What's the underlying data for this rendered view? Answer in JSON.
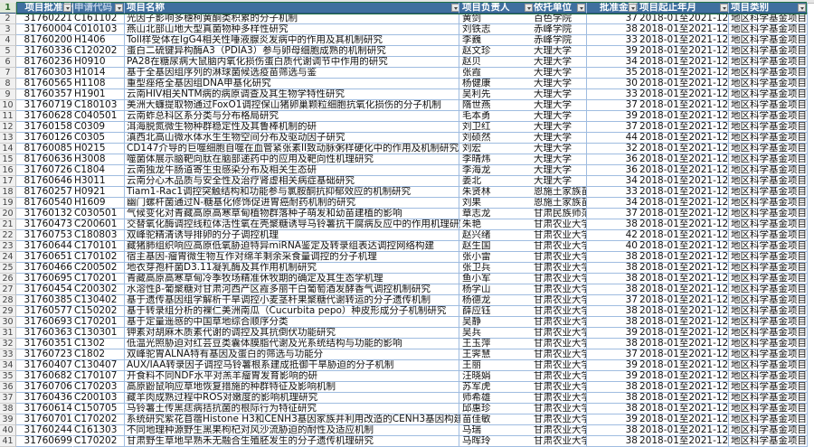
{
  "headers": [
    "项目批准号",
    "申请代码",
    "项目名称",
    "项目负责人",
    "依托单位",
    "批准金额",
    "项目起止年月",
    "项目类别"
  ],
  "header_bg": "#3f6f9f",
  "rows": [
    [
      "31760221",
      "C161102",
      "光因子影响多穗柯黄酮类积累的分子机制",
      "黄剑",
      "百色学院",
      "37",
      "2018-01至2021-12",
      "地区科学基金项目"
    ],
    [
      "31760004",
      "C010103",
      "燕山北部山地大型真菌物种多样性研究",
      "刘铁志",
      "赤峰学院",
      "38",
      "2018-01至2021-12",
      "地区科学基金项目"
    ],
    [
      "81760200",
      "H1406",
      "Toll样受体在IgG4相关性唾液腺炎发病中的作用及其机制研究",
      "李巍",
      "赤峰学院",
      "33",
      "2018-01至2021-12",
      "地区科学基金项目"
    ],
    [
      "31760336",
      "C120202",
      "蛋白二硫键异构酶A3（PDIA3）参与卵母细胞成熟的机制研究",
      "赵文珍",
      "大理大学",
      "39",
      "2018-01至2021-12",
      "地区科学基金项目"
    ],
    [
      "81760236",
      "H0910",
      "PA28在糖尿病大鼠脑内氧化损伤蛋白质代谢调节中作用的研究",
      "赵贝",
      "大理大学",
      "34",
      "2018-01至2021-12",
      "地区科学基金项目"
    ],
    [
      "81760303",
      "H1014",
      "基于全基因组序列的淋球菌候选疫苗筛选与鉴",
      "张霞",
      "大理大学",
      "35",
      "2018-01至2021-12",
      "地区科学基金项目"
    ],
    [
      "81760565",
      "H1108",
      "重型痤疮全基因组DNA甲基化研究",
      "杨健康",
      "大理大学",
      "30",
      "2018-01至2021-12",
      "地区科学基金项目"
    ],
    [
      "81760357",
      "H1901",
      "云南HIV相关NTM病的病原调查及其生物学特性研究",
      "吴利先",
      "大理大学",
      "33",
      "2018-01至2021-12",
      "地区科学基金项目"
    ],
    [
      "31760719",
      "C180103",
      "美洲大蠊提取物通过FoxO1调控保山猪卵巢颗粒细胞抗氧化损伤的分子机制",
      "隋世燕",
      "大理大学",
      "37",
      "2018-01至2021-12",
      "地区科学基金项目"
    ],
    [
      "31760628",
      "C040501",
      "云南蚱总科区系分类与分布格局研究",
      "毛本勇",
      "大理大学",
      "39",
      "2018-01至2021-12",
      "地区科学基金项目"
    ],
    [
      "31760158",
      "C0309",
      "洱海脱氮微生物种群稳定性及其鲁棒机制的研",
      "刘卫红",
      "大理大学",
      "37",
      "2018-01至2021-12",
      "地区科学基金项目"
    ],
    [
      "31760126",
      "C0305",
      "滇西北高山微水体水生生物空间分布及驱动因子研究",
      "刘硕然",
      "大理大学",
      "44",
      "2018-01至2021-12",
      "地区科学基金项目"
    ],
    [
      "81760085",
      "H0215",
      "CD147介导的巨噬细胞自噬在血管紧张素II致动脉粥样硬化中的作用及机制研究",
      "刘宏",
      "大理大学",
      "32",
      "2018-01至2021-12",
      "地区科学基金项目"
    ],
    [
      "81760636",
      "H3008",
      "噬菌体展示脑靶向肽在脑部递药中的应用及靶向性机理研究",
      "李晴炜",
      "大理大学",
      "36",
      "2018-01至2021-12",
      "地区科学基金项目"
    ],
    [
      "31760726",
      "C1804",
      "云南独龙牛肠道寄生虫感染分布及相关生态研",
      "李海龙",
      "大理大学",
      "36",
      "2018-01至2021-12",
      "地区科学基金项目"
    ],
    [
      "81760646",
      "H3011",
      "云南分心木品质与安全性及治疗肾虚相关病症基础研究",
      "姜北",
      "大理大学",
      "34",
      "2018-01至2021-12",
      "地区科学基金项目"
    ],
    [
      "81760257",
      "H0921",
      "Tiam1-Rac1调控突触结构和功能参与氯胺酮抗抑郁效应的机制研究",
      "朱贤林",
      "恩施土家族苗",
      "33",
      "2018-01至2021-12",
      "地区科学基金项目"
    ],
    [
      "81760540",
      "H1609",
      "幽门螺杆菌通过N-糖基化修饰促进胃癌耐药机制的研究",
      "刘果",
      "恩施土家族苗",
      "34",
      "2018-01至2021-12",
      "地区科学基金项目"
    ],
    [
      "31760132",
      "C030501",
      "气候变化对青藏高原高寒草甸植物群落种子萌发和幼苗建植的影响",
      "章志龙",
      "甘肃民族师范",
      "37",
      "2018-01至2021-12",
      "地区科学基金项目"
    ],
    [
      "31760473",
      "C200601",
      "交替氧化酶调控线粒体活性氧在壳聚糖诱导马铃薯抗干腐病反应中的作用机理研究",
      "朱艳",
      "甘肃农业大学",
      "38",
      "2018-01至2021-12",
      "地区科学基金项目"
    ],
    [
      "31760753",
      "C180803",
      "双峰驼精清诱导排卵的分子调控机理",
      "赵兴绪",
      "甘肃农业大学",
      "42",
      "2018-01至2021-12",
      "地区科学基金项目"
    ],
    [
      "31760644",
      "C170101",
      "藏猪肺组织响应高原低氧胁迫特异miRNA鉴定及转录组表达调控网络构建",
      "赵生国",
      "甘肃农业大学",
      "40",
      "2018-01至2021-12",
      "地区科学基金项目"
    ],
    [
      "31760651",
      "C170102",
      "宿主基因-瘤胃微生物互作对绵羊剩余采食量调控的分子机理",
      "张小雷",
      "甘肃农业大学",
      "38",
      "2018-01至2021-12",
      "地区科学基金项目"
    ],
    [
      "31760466",
      "C200502",
      "地衣芽孢杆菌D3.11凝乳酶及其作用机制研究",
      "张卫兵",
      "甘肃农业大学",
      "38",
      "2018-01至2021-12",
      "地区科学基金项目"
    ],
    [
      "31760695",
      "C170201",
      "青藏高原高寒草甸冷季牧场精准休牧期的确定及其生态学机理",
      "鱼小军",
      "甘肃农业大学",
      "38",
      "2018-01至2021-12",
      "地区科学基金项目"
    ],
    [
      "31760454",
      "C200302",
      "水溶性β-葡聚糖对甘肃河西产区霞多丽干白葡萄酒发酵香气调控机制研究",
      "杨学山",
      "甘肃农业大学",
      "38",
      "2018-01至2021-12",
      "地区科学基金项目"
    ],
    [
      "31760385",
      "C130402",
      "基于遗传基因组学解析干旱调控小麦茎秆果聚糖代谢转运的分子遗传机制",
      "杨德龙",
      "甘肃农业大学",
      "37",
      "2018-01至2021-12",
      "地区科学基金项目"
    ],
    [
      "31760577",
      "C150202",
      "基于转录组分析的裸仁美洲南瓜（Cucurbita pepo）种皮形成分子机制研究",
      "薛应钰",
      "甘肃农业大学",
      "38",
      "2018-01至2021-12",
      "地区科学基金项目"
    ],
    [
      "31760693",
      "C170201",
      "基于定量遥感的中国草地综合顺序分类",
      "吴静",
      "甘肃农业大学",
      "38",
      "2018-01至2021-12",
      "地区科学基金项目"
    ],
    [
      "31760363",
      "C130301",
      "钾素对胡麻木质素代谢的调控及其抗倒伏功能研究",
      "吴兵",
      "甘肃农业大学",
      "39",
      "2018-01至2021-12",
      "地区科学基金项目"
    ],
    [
      "31760351",
      "C1302",
      "低温光照胁迫对红芸豆类囊体膜脂代谢及光系统结构与功能的影响",
      "王玉萍",
      "甘肃农业大学",
      "38",
      "2018-01至2021-12",
      "地区科学基金项目"
    ],
    [
      "31760723",
      "C1802",
      "双峰驼胃ALNA特有基因及蛋白的筛选与功能分",
      "王霁慧",
      "甘肃农业大学",
      "37",
      "2018-01至2021-12",
      "地区科学基金项目"
    ],
    [
      "31760407",
      "C130407",
      "AUX/IAA转录因子调控马铃薯根系建成抵御干旱胁迫的分子机制",
      "王丽",
      "甘肃农业大学",
      "39",
      "2018-01至2021-12",
      "地区科学基金项目"
    ],
    [
      "31760682",
      "C170107",
      "开食料不同NDF水平对羔羊瘤胃发育影响的研",
      "汪晓娟",
      "甘肃农业大学",
      "39",
      "2018-01至2021-12",
      "地区科学基金项目"
    ],
    [
      "31760706",
      "C170203",
      "高原鼢鼠响应草地恢复措施的种群特征及影响机制",
      "苏军虎",
      "甘肃农业大学",
      "38",
      "2018-01至2021-12",
      "地区科学基金项目"
    ],
    [
      "31760436",
      "C200103",
      " 藏羊肉成熟过程中ROS对嫩度的影响机理研究",
      "师希雄",
      "甘肃农业大学",
      "38",
      "2018-01至2021-12",
      "地区科学基金项目"
    ],
    [
      "31760614",
      "C150705",
      "马铃薯土传黑痣病拮抗菌的根际行为特征研究",
      "邱惠珍",
      "甘肃农业大学",
      "38",
      "2018-01至2021-12",
      "地区科学基金项目"
    ],
    [
      "31760701",
      "C170202",
      "系统研究紫花苜蓿Histone H3和CENH3基因家族并利用改造的CENH3基因构建紫花苜蓿",
      "苗佳敏",
      "甘肃农业大学",
      "39",
      "2018-01至2021-12",
      "地区科学基金项目"
    ],
    [
      "31760244",
      "C161303",
      "不同地理种源野生黑果枸杞对风沙流胁迫的耐性及适应机制",
      "马瑞",
      "甘肃农业大学",
      "38",
      "2018-01至2021-12",
      "地区科学基金项目"
    ],
    [
      "31760699",
      "C170202",
      "甘肃野生草地早熟禾无融合生殖胚发生的分子遗传机理研究",
      "马晖玲",
      "甘肃农业大学",
      "38",
      "2018-01至2021-12",
      "地区科学基金项目"
    ]
  ]
}
